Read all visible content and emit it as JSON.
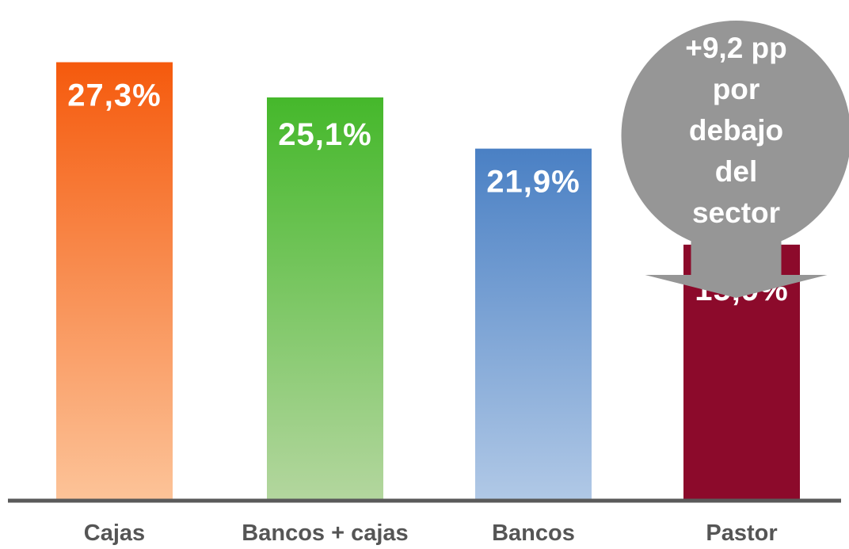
{
  "chart_data": {
    "type": "bar",
    "categories": [
      "Cajas",
      "Bancos + cajas",
      "Bancos",
      "Pastor"
    ],
    "values": [
      27.3,
      25.1,
      21.9,
      15.9
    ],
    "value_labels": [
      "27,3%",
      "25,1%",
      "21,9%",
      "15,9%"
    ],
    "ylim": [
      0,
      30
    ],
    "grid": false,
    "legend": "none",
    "title": "",
    "xlabel": "",
    "ylabel": "",
    "colors": [
      {
        "top": "#f55a0d",
        "bottom": "#fcc398"
      },
      {
        "top": "#45b82b",
        "bottom": "#b3d69e"
      },
      {
        "top": "#4a80c4",
        "bottom": "#b0c8e6"
      },
      {
        "top": "#8c0a2b",
        "bottom": "#8c0a2b"
      }
    ],
    "annotation": {
      "lines": [
        "+9,2 pp",
        "por",
        "debajo",
        "del",
        "sector"
      ],
      "target_category": "Pastor",
      "color": "#969696"
    }
  }
}
